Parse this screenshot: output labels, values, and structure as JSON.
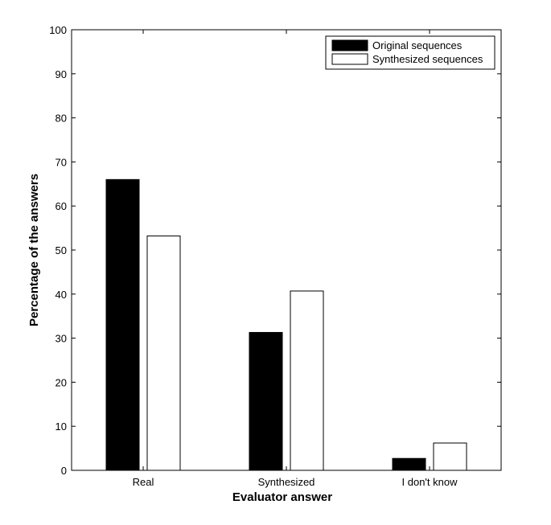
{
  "chart_data": {
    "type": "bar",
    "title": "",
    "xlabel": "Evaluator answer",
    "ylabel": "Percentage of the answers",
    "categories": [
      "Real",
      "Synthesized",
      "I don't know"
    ],
    "series": [
      {
        "name": "Original sequences",
        "values": [
          66,
          31.3,
          2.7
        ],
        "color": "#000000"
      },
      {
        "name": "Synthesized sequences",
        "values": [
          53.2,
          40.7,
          6.2
        ],
        "color": "#ffffff"
      }
    ],
    "ylim": [
      0,
      100
    ],
    "yticks": [
      0,
      10,
      20,
      30,
      40,
      50,
      60,
      70,
      80,
      90,
      100
    ],
    "grid": false,
    "legend_position": "top-right"
  }
}
